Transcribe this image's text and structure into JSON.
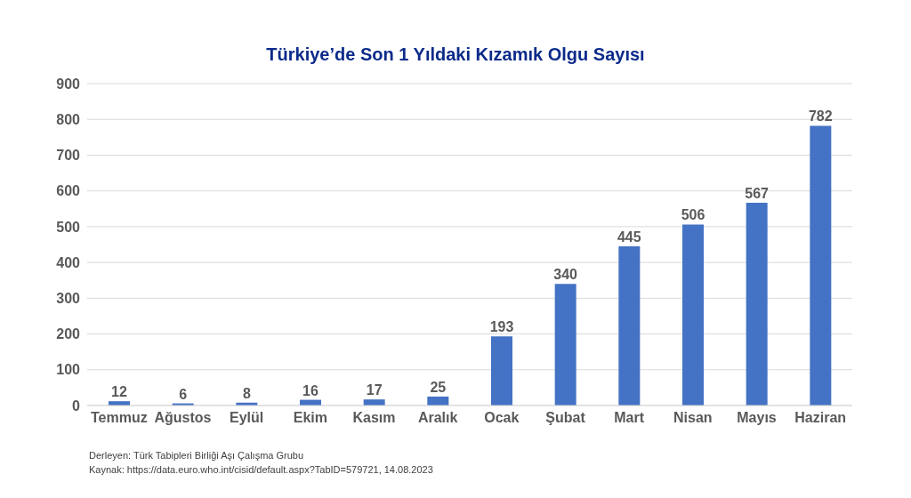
{
  "chart_data": {
    "type": "bar",
    "title": "Türkiye’de Son 1 Yıldaki Kızamık Olgu Sayısı",
    "categories": [
      "Temmuz",
      "Ağustos",
      "Eylül",
      "Ekim",
      "Kasım",
      "Aralık",
      "Ocak",
      "Şubat",
      "Mart",
      "Nisan",
      "Mayıs",
      "Haziran"
    ],
    "values": [
      12,
      6,
      8,
      16,
      17,
      25,
      193,
      340,
      445,
      506,
      567,
      782
    ],
    "color": "#4472c4",
    "ylim": [
      0,
      900
    ],
    "yticks": [
      0,
      100,
      200,
      300,
      400,
      500,
      600,
      700,
      800,
      900
    ],
    "grid": "y",
    "data_labels": true,
    "legend": false,
    "annotations": [
      "Derleyen: Türk Tabipleri Birliği Aşı Çalışma Grubu",
      "Kaynak: https://data.euro.who.int/cisid/default.aspx?TabID=579721, 14.08.2023"
    ]
  }
}
